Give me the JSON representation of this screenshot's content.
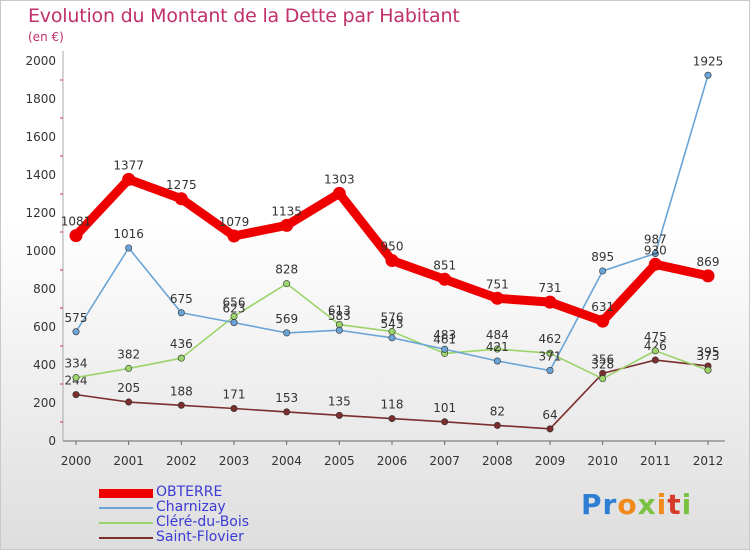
{
  "header": {
    "title": "Evolution du Montant de la Dette par Habitant",
    "unit": "(en €)"
  },
  "brand": {
    "text": "Proxiti",
    "colors": [
      "#2e7fd4",
      "#2e7fd4",
      "#f08a1c",
      "#7cc242",
      "#f08a1c",
      "#d63a2a",
      "#7cc242"
    ]
  },
  "chart_data": {
    "type": "line",
    "title": "Evolution du Montant de la Dette par Habitant",
    "ylabel": "(en €)",
    "xlabel": "",
    "x": [
      "2000",
      "2001",
      "2002",
      "2003",
      "2004",
      "2005",
      "2006",
      "2007",
      "2008",
      "2009",
      "2010",
      "2011",
      "2012"
    ],
    "ylim": [
      0,
      2000
    ],
    "yticks": [
      0,
      200,
      400,
      600,
      800,
      1000,
      1200,
      1400,
      1600,
      1800,
      2000
    ],
    "grid": false,
    "legend_position": "bottom-left",
    "series": [
      {
        "name": "OBTERRE",
        "color": "#ee0000",
        "values": [
          1081,
          1377,
          1275,
          1079,
          1135,
          1303,
          950,
          851,
          751,
          731,
          631,
          930,
          869
        ],
        "labels": [
          "1081",
          "1377",
          "1275",
          "1079",
          "1135",
          "1303",
          "950",
          "851",
          "751",
          "731",
          "631",
          "930",
          "869"
        ]
      },
      {
        "name": "Charnizay",
        "color": "#6aa4d6",
        "values": [
          575,
          1016,
          675,
          623,
          569,
          583,
          543,
          483,
          421,
          371,
          895,
          987,
          1925
        ],
        "labels": [
          "575",
          "1016",
          "675",
          "623",
          "569",
          "583",
          "543",
          "483",
          "421",
          "371",
          "895",
          "987",
          "1925"
        ]
      },
      {
        "name": "Cléré-du-Bois",
        "color": "#9bd46a",
        "values": [
          334,
          382,
          436,
          656,
          828,
          613,
          576,
          461,
          484,
          462,
          328,
          475,
          373
        ],
        "labels": [
          "334",
          "382",
          "436",
          "656",
          "828",
          "613",
          "576",
          "461",
          "484",
          "462",
          "328",
          "475",
          "373"
        ]
      },
      {
        "name": "Saint-Flovier",
        "color": "#7a2e2e",
        "values": [
          244,
          205,
          188,
          171,
          153,
          135,
          118,
          101,
          82,
          64,
          356,
          426,
          395
        ],
        "labels": [
          "244",
          "205",
          "188",
          "171",
          "153",
          "135",
          "118",
          "101",
          "82",
          "64",
          "356",
          "426",
          "395"
        ]
      }
    ]
  }
}
